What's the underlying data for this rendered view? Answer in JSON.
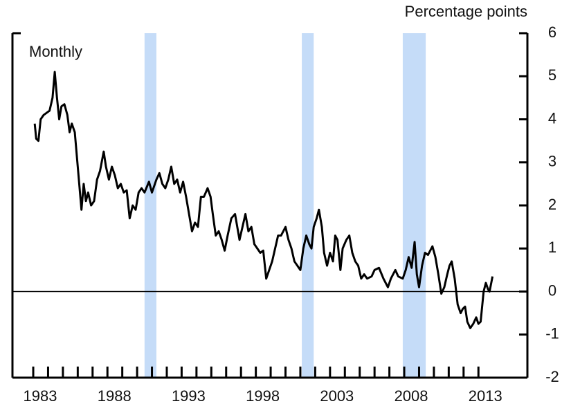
{
  "chart_data": {
    "type": "line",
    "y_label": "Percentage points",
    "annotation": "Monthly",
    "x": [
      1983.1,
      1983.2,
      1983.35,
      1983.5,
      1983.7,
      1983.9,
      1984.1,
      1984.3,
      1984.45,
      1984.6,
      1984.75,
      1984.9,
      1985.1,
      1985.3,
      1985.45,
      1985.6,
      1985.8,
      1986.0,
      1986.15,
      1986.25,
      1986.4,
      1986.55,
      1986.7,
      1986.9,
      1987.1,
      1987.3,
      1987.5,
      1987.75,
      1987.9,
      1988.1,
      1988.3,
      1988.5,
      1988.7,
      1988.9,
      1989.1,
      1989.3,
      1989.5,
      1989.7,
      1989.9,
      1990.1,
      1990.3,
      1990.5,
      1990.8,
      1991.0,
      1991.3,
      1991.5,
      1991.7,
      1991.9,
      1992.1,
      1992.3,
      1992.5,
      1992.7,
      1992.9,
      1993.1,
      1993.3,
      1993.5,
      1993.7,
      1993.9,
      1994.1,
      1994.3,
      1994.5,
      1994.75,
      1994.95,
      1995.1,
      1995.3,
      1995.5,
      1995.7,
      1995.9,
      1996.1,
      1996.35,
      1996.6,
      1996.9,
      1997.1,
      1997.3,
      1997.5,
      1997.7,
      1997.9,
      1998.1,
      1998.3,
      1998.5,
      1998.7,
      1998.9,
      1999.1,
      1999.3,
      1999.5,
      1999.7,
      2000.0,
      2000.2,
      2000.4,
      2000.6,
      2000.8,
      2001.0,
      2001.2,
      2001.4,
      2001.6,
      2001.75,
      2001.9,
      2002.1,
      2002.25,
      2002.45,
      2002.6,
      2002.8,
      2003.0,
      2003.2,
      2003.35,
      2003.5,
      2003.7,
      2003.85,
      2004.1,
      2004.3,
      2004.5,
      2004.7,
      2004.9,
      2005.1,
      2005.3,
      2005.5,
      2005.8,
      2006.0,
      2006.3,
      2006.6,
      2006.9,
      2007.1,
      2007.4,
      2007.6,
      2007.9,
      2008.1,
      2008.3,
      2008.5,
      2008.7,
      2008.85,
      2009.0,
      2009.2,
      2009.4,
      2009.6,
      2009.9,
      2010.1,
      2010.3,
      2010.5,
      2010.7,
      2010.9,
      2011.05,
      2011.2,
      2011.4,
      2011.6,
      2011.8,
      2011.95,
      2012.1,
      2012.25,
      2012.45,
      2012.65,
      2012.85,
      2013.0,
      2013.15,
      2013.35,
      2013.5,
      2013.65,
      2013.75,
      2013.95
    ],
    "series": [
      {
        "color": "#000000",
        "values": [
          3.9,
          3.55,
          3.5,
          4.0,
          4.1,
          4.15,
          4.2,
          4.5,
          5.1,
          4.5,
          4.0,
          4.3,
          4.35,
          4.1,
          3.7,
          3.9,
          3.7,
          2.9,
          2.3,
          1.9,
          2.5,
          2.1,
          2.3,
          2.0,
          2.1,
          2.6,
          2.8,
          3.25,
          2.9,
          2.6,
          2.9,
          2.7,
          2.4,
          2.5,
          2.3,
          2.35,
          1.7,
          2.0,
          1.9,
          2.3,
          2.4,
          2.3,
          2.55,
          2.3,
          2.6,
          2.75,
          2.5,
          2.4,
          2.6,
          2.9,
          2.5,
          2.6,
          2.3,
          2.55,
          2.2,
          1.8,
          1.4,
          1.6,
          1.5,
          2.2,
          2.2,
          2.4,
          2.2,
          1.8,
          1.3,
          1.4,
          1.2,
          0.95,
          1.3,
          1.7,
          1.8,
          1.2,
          1.5,
          1.8,
          1.4,
          1.5,
          1.1,
          1.0,
          0.9,
          0.95,
          0.3,
          0.5,
          0.7,
          1.0,
          1.3,
          1.3,
          1.5,
          1.2,
          1.0,
          0.7,
          0.6,
          0.5,
          1.0,
          1.3,
          1.1,
          1.0,
          1.5,
          1.7,
          1.9,
          1.5,
          0.9,
          0.6,
          0.9,
          0.7,
          1.3,
          1.2,
          0.5,
          1.0,
          1.2,
          1.3,
          0.9,
          0.7,
          0.6,
          0.3,
          0.4,
          0.3,
          0.35,
          0.5,
          0.55,
          0.3,
          0.1,
          0.3,
          0.5,
          0.35,
          0.3,
          0.5,
          0.8,
          0.55,
          1.15,
          0.4,
          0.1,
          0.6,
          0.9,
          0.85,
          1.05,
          0.8,
          0.4,
          -0.05,
          0.1,
          0.4,
          0.6,
          0.7,
          0.3,
          -0.3,
          -0.5,
          -0.4,
          -0.35,
          -0.7,
          -0.85,
          -0.75,
          -0.6,
          -0.75,
          -0.7,
          0.0,
          0.2,
          0.05,
          0.0,
          0.35
        ]
      }
    ],
    "shaded_regions": [
      [
        1990.5,
        1991.3
      ],
      [
        2001.1,
        2001.9
      ],
      [
        2007.9,
        2009.45
      ]
    ],
    "shade_color": "#c5dcf8",
    "reference_line": 0,
    "xlim": [
      1981.6,
      2016.3
    ],
    "xticks": [
      1983,
      1988,
      1993,
      1998,
      2003,
      2008,
      2013
    ],
    "xminorticks": [
      1983,
      1984,
      1985,
      1986,
      1987,
      1988,
      1989,
      1990,
      1991,
      1992,
      1993,
      1994,
      1995,
      1996,
      1997,
      1998,
      1999,
      2000,
      2001,
      2002,
      2003,
      2004,
      2005,
      2006,
      2007,
      2008,
      2009,
      2010,
      2011,
      2012,
      2013
    ],
    "ylim": [
      -2,
      6
    ],
    "yticks": [
      -2,
      -1,
      0,
      1,
      2,
      3,
      4,
      5,
      6
    ]
  }
}
